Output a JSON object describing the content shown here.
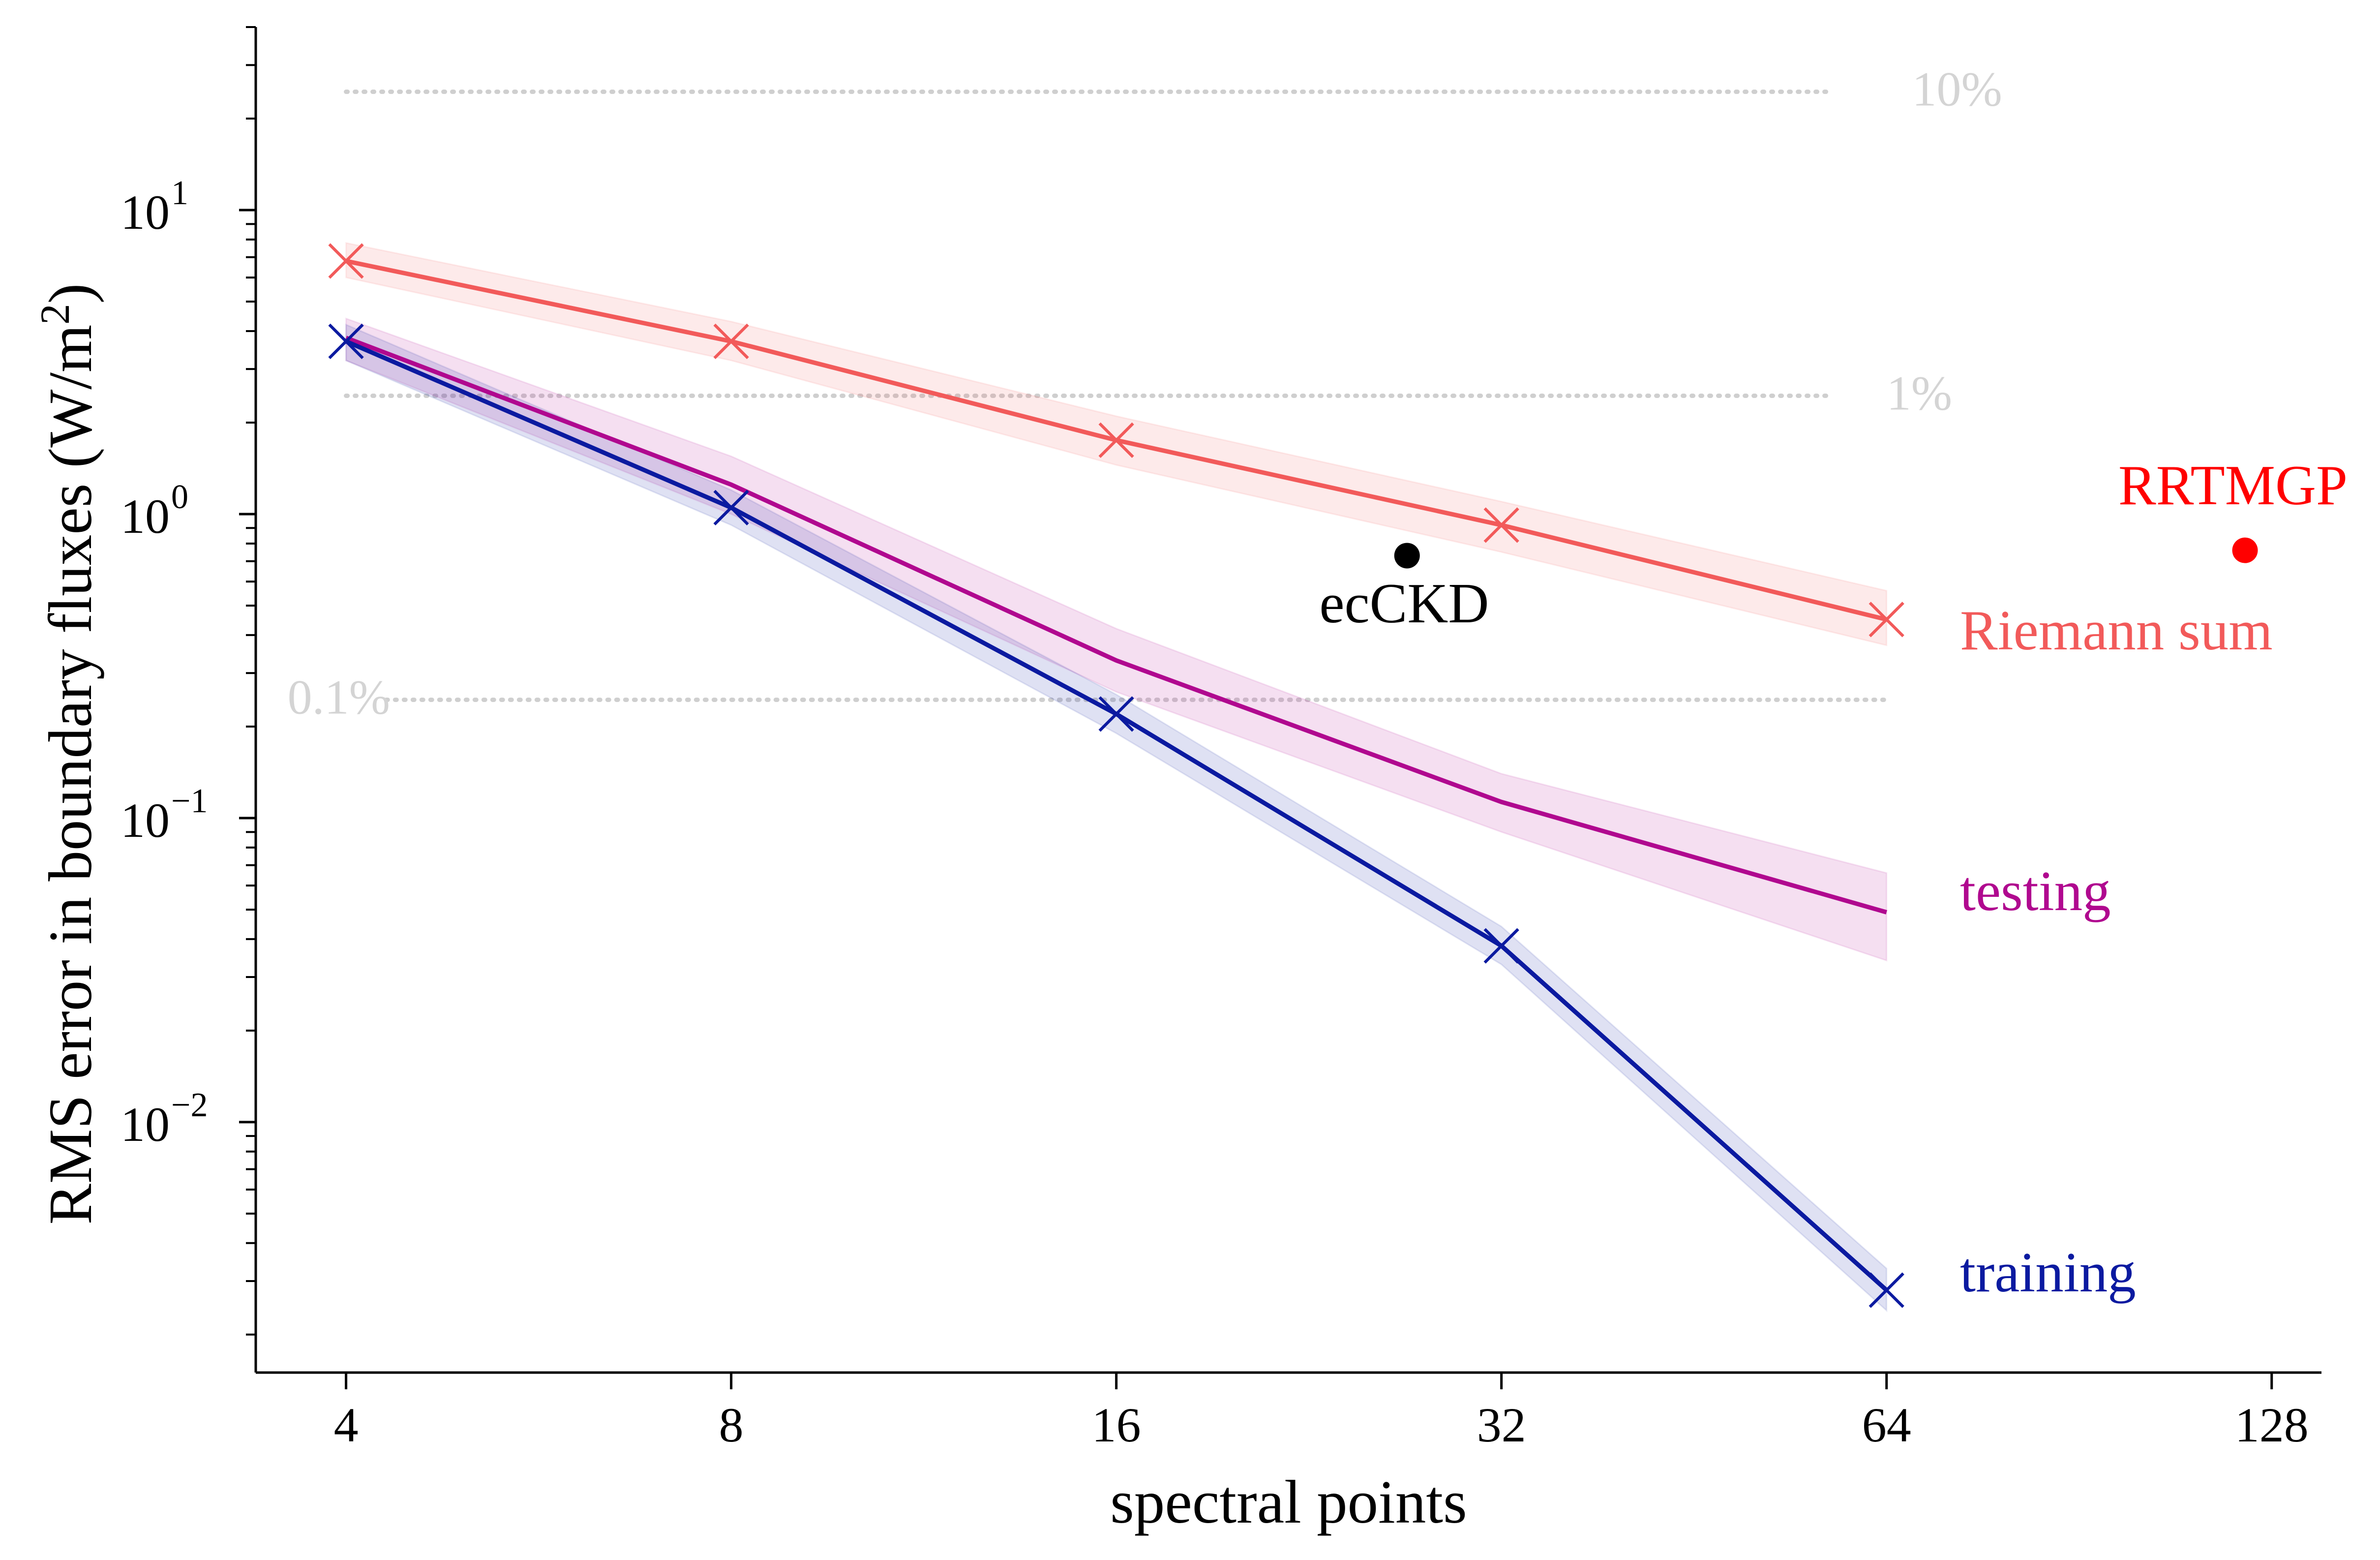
{
  "chart_data": {
    "type": "line",
    "xlabel": "spectral points",
    "ylabel": "RMS error in boundary fluxes (W/m",
    "ylabel_superscript": "2",
    "ylabel_suffix": ")",
    "xscale": "log2",
    "yscale": "log10",
    "xlim": [
      3.4,
      140
    ],
    "ylim": [
      0.0015,
      40
    ],
    "xticks": [
      {
        "value": 4,
        "label": "4"
      },
      {
        "value": 8,
        "label": "8"
      },
      {
        "value": 16,
        "label": "16"
      },
      {
        "value": 32,
        "label": "32"
      },
      {
        "value": 64,
        "label": "64"
      },
      {
        "value": 128,
        "label": "128"
      }
    ],
    "yticks": [
      {
        "value": 10,
        "base": "10",
        "exp": "1"
      },
      {
        "value": 1,
        "base": "10",
        "exp": "0"
      },
      {
        "value": 0.1,
        "base": "10",
        "exp": "−1"
      },
      {
        "value": 0.01,
        "base": "10",
        "exp": "−2"
      }
    ],
    "grid": false,
    "series": [
      {
        "name": "Riemann sum",
        "color": "#f25a5a",
        "x": [
          4,
          8,
          16,
          32,
          64
        ],
        "values": [
          6.8,
          3.7,
          1.75,
          0.92,
          0.45
        ],
        "lower": [
          6.0,
          3.2,
          1.45,
          0.75,
          0.37
        ],
        "upper": [
          7.8,
          4.3,
          2.1,
          1.1,
          0.56
        ],
        "markers": [
          true,
          true,
          true,
          true,
          true
        ]
      },
      {
        "name": "testing",
        "color": "#b0088f",
        "x": [
          4,
          8,
          16,
          32,
          64
        ],
        "values": [
          3.8,
          1.25,
          0.33,
          0.113,
          0.049
        ],
        "lower": [
          3.2,
          1.0,
          0.26,
          0.09,
          0.034
        ],
        "upper": [
          4.4,
          1.55,
          0.42,
          0.14,
          0.066
        ],
        "markers": [
          false,
          false,
          false,
          false,
          false
        ]
      },
      {
        "name": "training",
        "color": "#0b1aa0",
        "x": [
          4,
          8,
          16,
          32,
          64
        ],
        "values": [
          3.7,
          1.05,
          0.22,
          0.038,
          0.0028
        ],
        "lower": [
          3.2,
          0.92,
          0.19,
          0.033,
          0.0024
        ],
        "upper": [
          4.2,
          1.2,
          0.255,
          0.044,
          0.0033
        ],
        "markers": [
          true,
          true,
          true,
          true,
          true
        ]
      }
    ],
    "points": [
      {
        "name": "ecCKD",
        "x": 27,
        "y": 0.73,
        "color": "#000000"
      },
      {
        "name": "RRTMGP",
        "x": 122,
        "y": 0.76,
        "color": "#ff0000"
      }
    ],
    "reference_lines": [
      {
        "label": "10%",
        "y": 24.5,
        "x_from": 4,
        "x_to": 58,
        "label_x": 67
      },
      {
        "label": "1%",
        "y": 2.45,
        "x_from": 4,
        "x_to": 58,
        "label_x": 64
      },
      {
        "label": "0.1%",
        "y": 0.245,
        "x_from": 4.3,
        "x_to": 64,
        "label_x": 3.6
      }
    ]
  }
}
